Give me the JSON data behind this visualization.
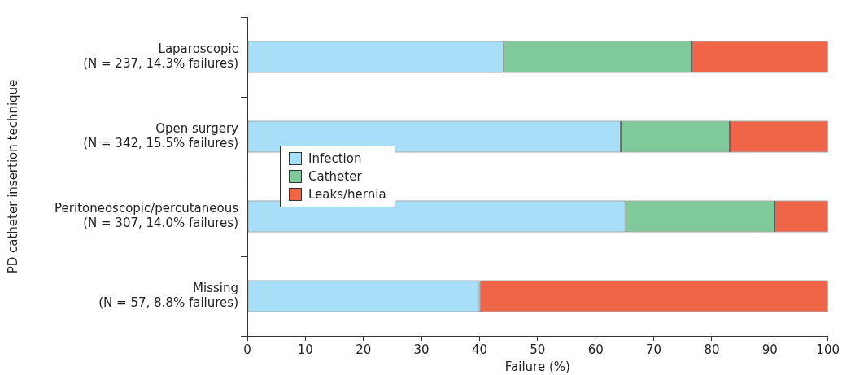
{
  "chart_data": {
    "type": "bar",
    "orientation": "horizontal",
    "stacked": true,
    "categories": [
      "Laparoscopic\n(N = 237, 14.3% failures)",
      "Open surgery\n(N = 342, 15.5% failures)",
      "Peritoneoscopic/percutaneous\n(N = 307, 14.0% failures)",
      "Missing\n(N = 57, 8.8% failures)"
    ],
    "series": [
      {
        "name": "Infection",
        "color": "#a8dff8",
        "values": [
          44.1,
          64.3,
          65.1,
          40.0
        ]
      },
      {
        "name": "Catheter",
        "color": "#80c99a",
        "values": [
          32.4,
          18.8,
          25.7,
          0
        ]
      },
      {
        "name": "Leaks/hernia",
        "color": "#ef6548",
        "values": [
          23.5,
          16.9,
          9.2,
          60.0
        ]
      }
    ],
    "xlim": [
      0,
      100
    ],
    "xticks": [
      0,
      10,
      20,
      30,
      40,
      50,
      60,
      70,
      80,
      90,
      100
    ],
    "xlabel": "Failure (%)",
    "ylabel": "PD catheter insertion technique",
    "grid": false,
    "legend": "center left"
  }
}
